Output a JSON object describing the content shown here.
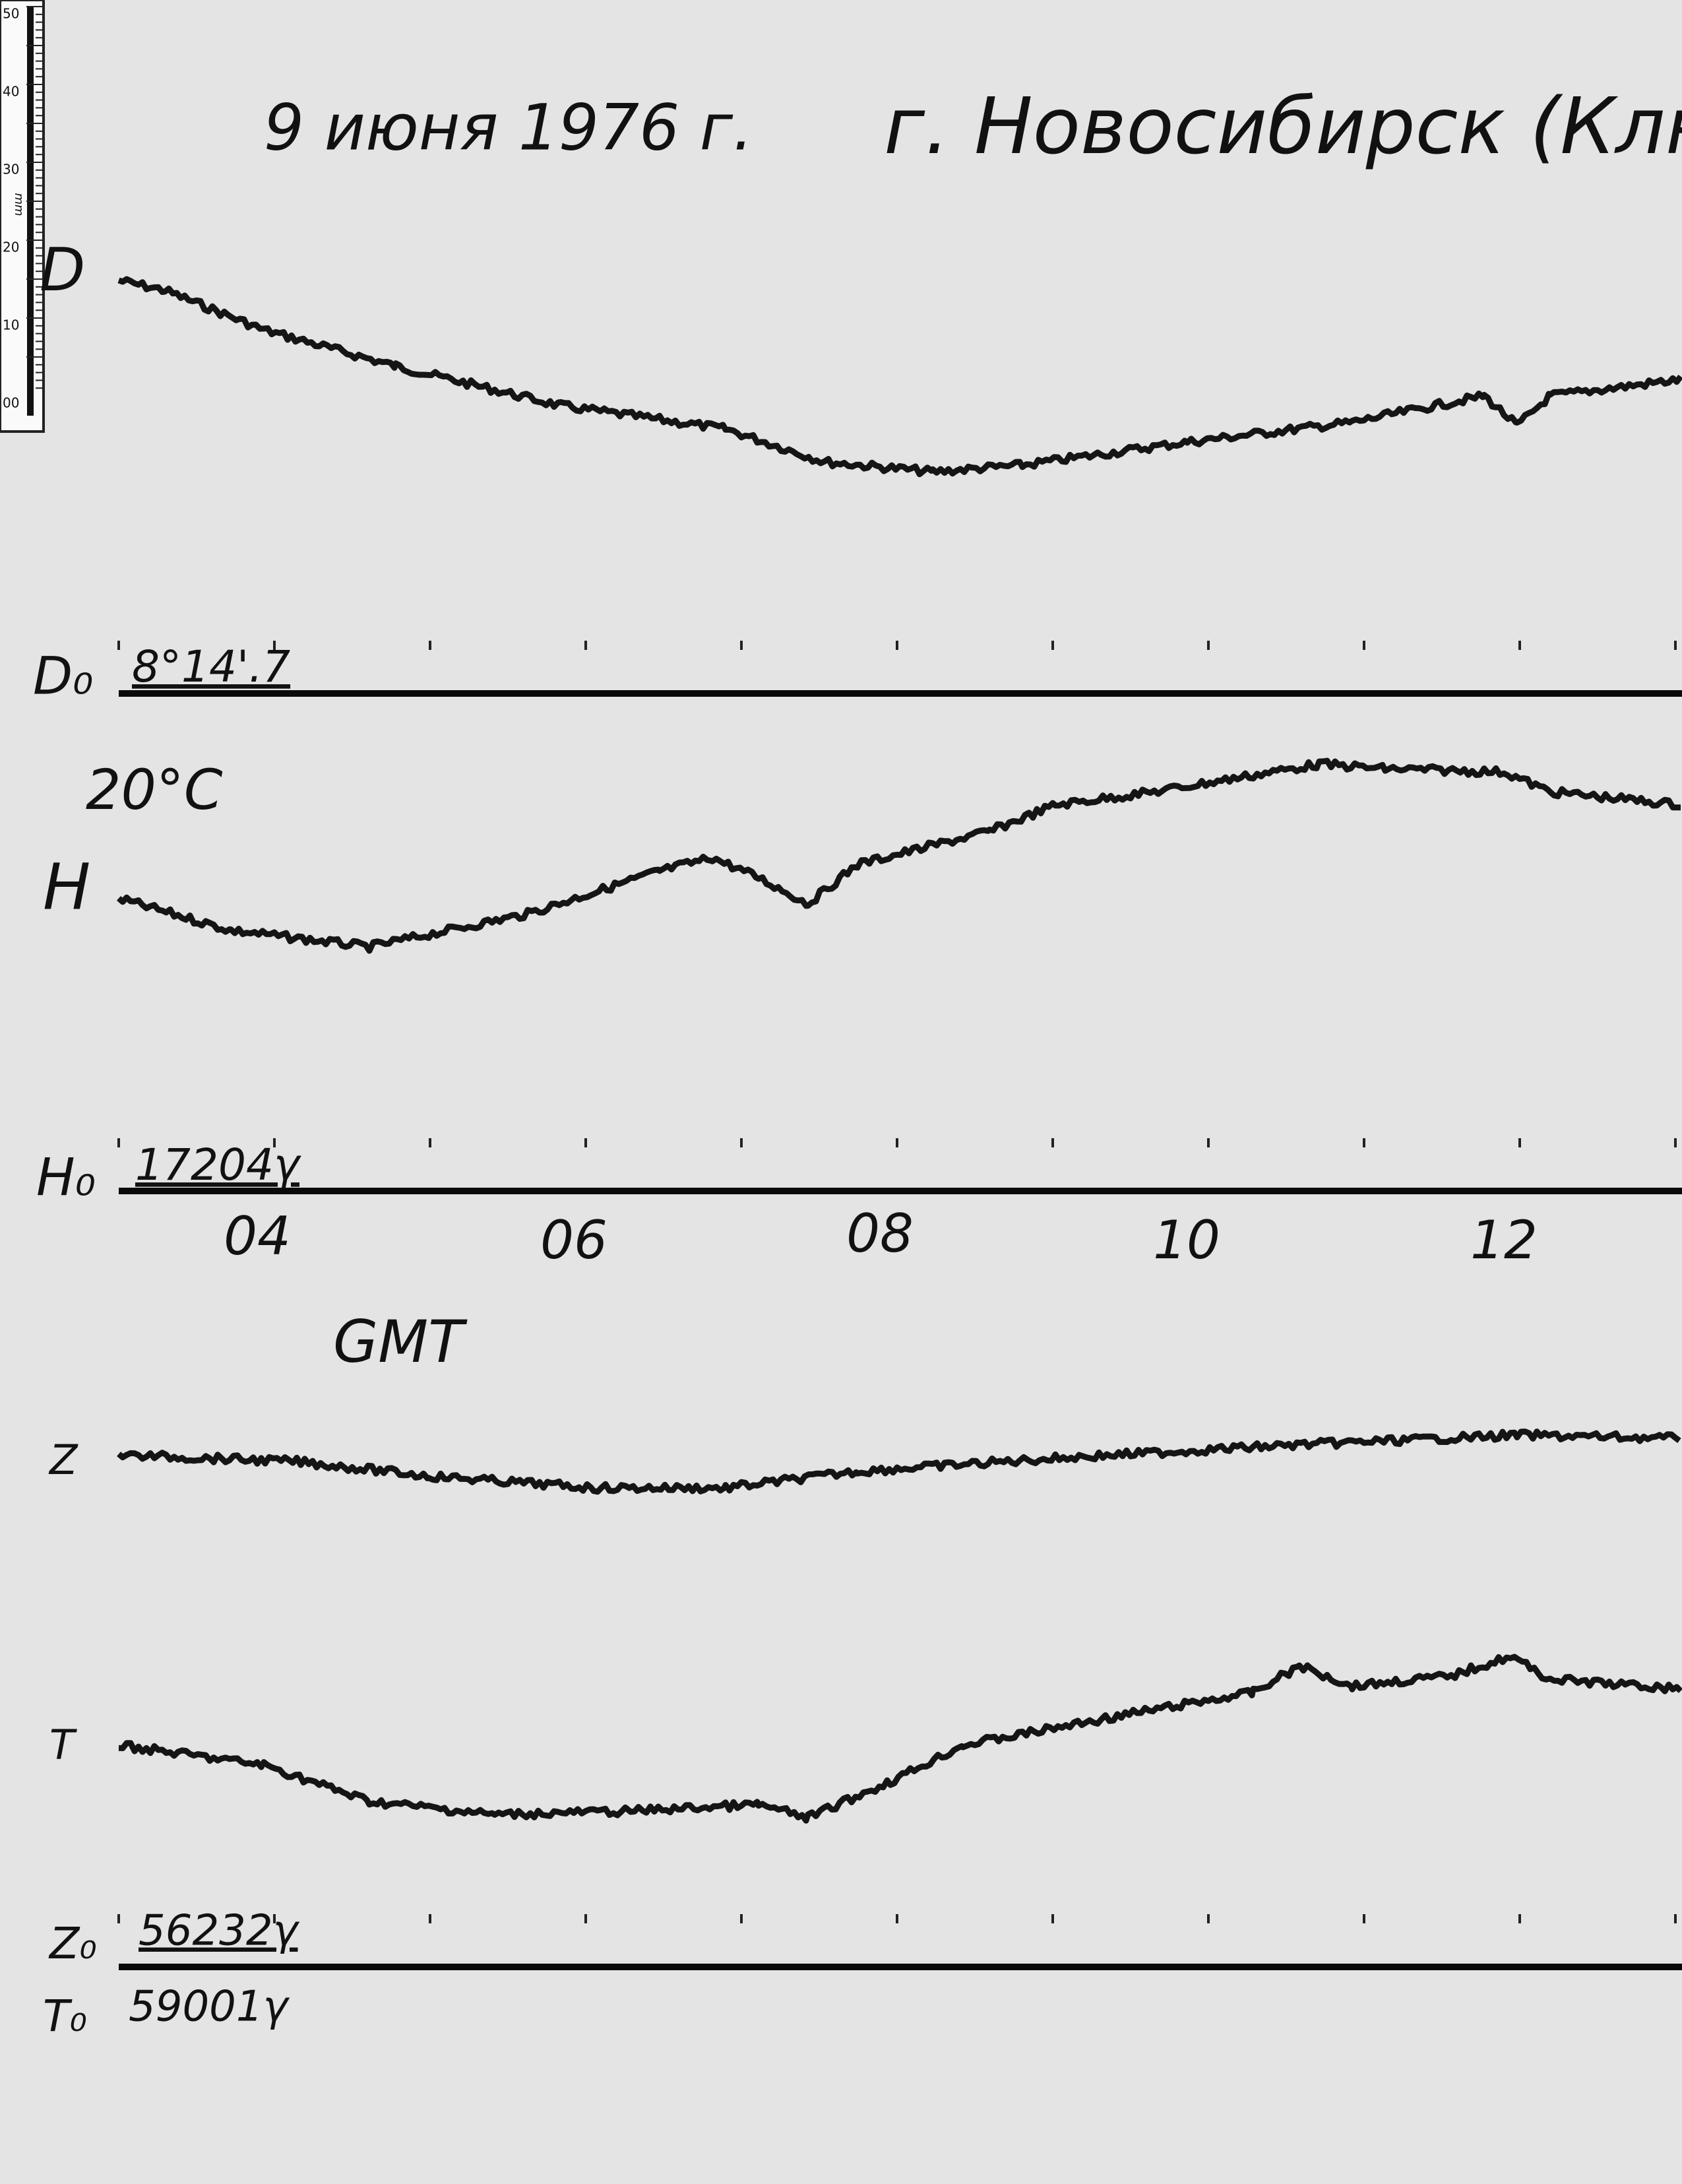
{
  "header": {
    "date": "9 июня 1976 г.",
    "place": "г. Новосибирск (Ключ"
  },
  "ruler": {
    "unit": "mm",
    "ticks": [
      "50",
      "40",
      "30",
      "20",
      "10",
      "00"
    ]
  },
  "traces": [
    {
      "label": "D",
      "base_label": "D₀",
      "base_value": "8°14'.7"
    },
    {
      "label": "H",
      "base_label": "H₀",
      "base_value": "17204γ",
      "temperature": "20°C"
    },
    {
      "label": "Z",
      "base_label": "Z₀",
      "base_value": "56232γ"
    },
    {
      "label": "T",
      "base_label": "T₀",
      "base_value": "59001γ"
    }
  ],
  "time_axis": {
    "hours": [
      "04",
      "06",
      "08",
      "10",
      "12"
    ],
    "label": "GMT"
  }
}
